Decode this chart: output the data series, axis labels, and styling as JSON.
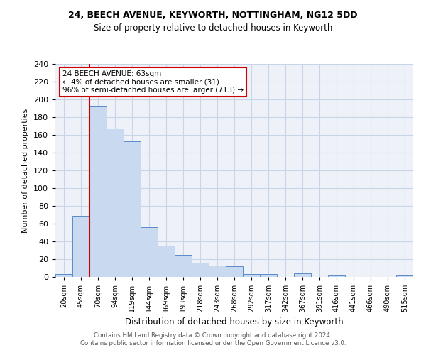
{
  "title1": "24, BEECH AVENUE, KEYWORTH, NOTTINGHAM, NG12 5DD",
  "title2": "Size of property relative to detached houses in Keyworth",
  "xlabel": "Distribution of detached houses by size in Keyworth",
  "ylabel": "Number of detached properties",
  "categories": [
    "20sqm",
    "45sqm",
    "70sqm",
    "94sqm",
    "119sqm",
    "144sqm",
    "169sqm",
    "193sqm",
    "218sqm",
    "243sqm",
    "268sqm",
    "292sqm",
    "317sqm",
    "342sqm",
    "367sqm",
    "391sqm",
    "416sqm",
    "441sqm",
    "466sqm",
    "490sqm",
    "515sqm"
  ],
  "values": [
    3,
    69,
    193,
    167,
    153,
    56,
    35,
    25,
    16,
    13,
    12,
    3,
    3,
    0,
    4,
    0,
    2,
    0,
    0,
    0,
    2
  ],
  "bar_color": "#c9d9f0",
  "bar_edge_color": "#5b8cc8",
  "vline_x": 2,
  "vline_color": "#cc0000",
  "annotation_text": "24 BEECH AVENUE: 63sqm\n← 4% of detached houses are smaller (31)\n96% of semi-detached houses are larger (713) →",
  "annotation_box_color": "#ffffff",
  "annotation_box_edge": "#cc0000",
  "ylim": [
    0,
    240
  ],
  "yticks": [
    0,
    20,
    40,
    60,
    80,
    100,
    120,
    140,
    160,
    180,
    200,
    220,
    240
  ],
  "grid_color": "#c8d4e8",
  "bg_color": "#eef2f8",
  "footer1": "Contains HM Land Registry data © Crown copyright and database right 2024.",
  "footer2": "Contains public sector information licensed under the Open Government Licence v3.0."
}
